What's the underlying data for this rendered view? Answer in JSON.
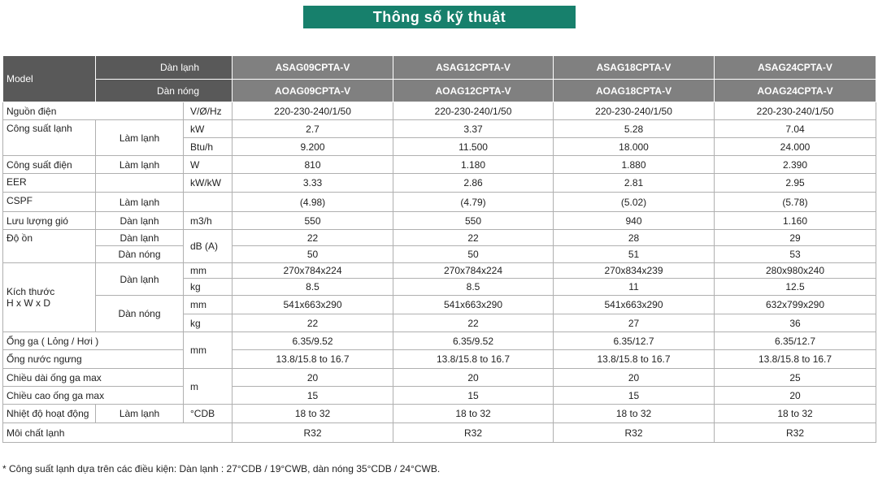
{
  "header": {
    "title": "Thông số kỹ thuật"
  },
  "table": {
    "head": {
      "model": "Model",
      "indoor": "Dàn lạnh",
      "outdoor": "Dàn nóng",
      "indoor_models": [
        "ASAG09CPTA-V",
        "ASAG12CPTA-V",
        "ASAG18CPTA-V",
        "ASAG24CPTA-V"
      ],
      "outdoor_models": [
        "AOAG09CPTA-V",
        "AOAG12CPTA-V",
        "AOAG18CPTA-V",
        "AOAG24CPTA-V"
      ]
    },
    "rows": [
      [
        "Nguồn điện",
        "V/Ø/Hz",
        "220-230-240/1/50",
        "220-230-240/1/50",
        "220-230-240/1/50",
        "220-230-240/1/50"
      ],
      [
        "Công suất lạnh",
        "Làm lạnh",
        "kW",
        "2.7",
        "3.37",
        "5.28",
        "7.04"
      ],
      [
        "Btu/h",
        "9.200",
        "11.500",
        "18.000",
        "24.000"
      ],
      [
        "Công suất điện",
        "Làm lạnh",
        "W",
        "810",
        "1.180",
        "1.880",
        "2.390"
      ],
      [
        "EER",
        "kW/kW",
        "3.33",
        "2.86",
        "2.81",
        "2.95"
      ],
      [
        "CSPF",
        "Làm lạnh",
        "(4.98)",
        "(4.79)",
        "(5.02)",
        "(5.78)"
      ],
      [
        "Lưu lượng gió",
        "Dàn lạnh",
        "m3/h",
        "550",
        "550",
        "940",
        "1.160"
      ],
      [
        "Độ ồn",
        "Dàn lạnh",
        "dB (A)",
        "22",
        "22",
        "28",
        "29"
      ],
      [
        "Dàn nóng",
        "50",
        "50",
        "51",
        "53"
      ],
      [
        "Kích thước\nH x W x D",
        "Dàn lạnh",
        "mm",
        "270x784x224",
        "270x784x224",
        "270x834x239",
        "280x980x240"
      ],
      [
        "kg",
        "8.5",
        "8.5",
        "11",
        "12.5"
      ],
      [
        "Dàn nóng",
        "mm",
        "541x663x290",
        "541x663x290",
        "541x663x290",
        "632x799x290"
      ],
      [
        "kg",
        "22",
        "22",
        "27",
        "36"
      ],
      [
        "Ống ga ( Lỏng / Hơi )",
        "mm",
        "6.35/9.52",
        "6.35/9.52",
        "6.35/12.7",
        "6.35/12.7"
      ],
      [
        "Ống nước ngưng",
        "13.8/15.8 to 16.7",
        "13.8/15.8 to 16.7",
        "13.8/15.8 to 16.7",
        "13.8/15.8 to 16.7"
      ],
      [
        "Chiều dài ống ga max",
        "m",
        "20",
        "20",
        "20",
        "25"
      ],
      [
        "Chiều cao ống ga max",
        "15",
        "15",
        "15",
        "20"
      ],
      [
        "Nhiệt độ hoạt động",
        "Làm lạnh",
        "°CDB",
        "18 to 32",
        "18 to 32",
        "18 to 32",
        "18 to 32"
      ],
      [
        "Môi chất lạnh",
        "R32",
        "R32",
        "R32",
        "R32"
      ]
    ]
  },
  "footnote": "* Công suất lạnh dựa trên các điều kiện: Dàn lạnh : 27°CDB / 19°CWB, dàn nóng 35°CDB / 24°CWB."
}
